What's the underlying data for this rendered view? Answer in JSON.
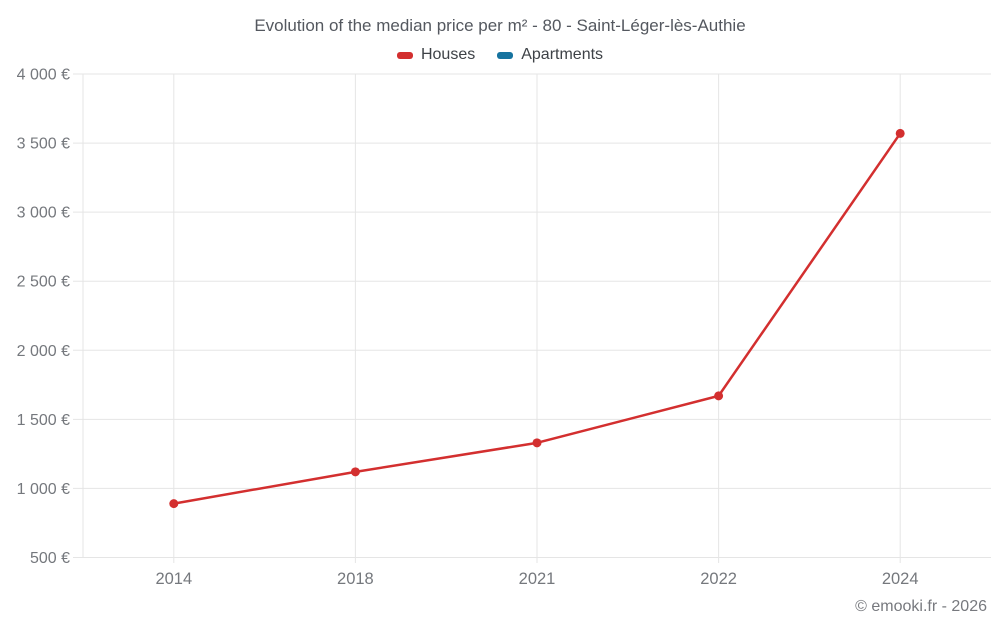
{
  "footer": "© emooki.fr - 2026",
  "colors": {
    "background": "#ffffff",
    "grid": "#e5e5e5",
    "tick_label": "#75787d",
    "title": "#54585f",
    "legend_label": "#3e4247",
    "houses": "#d32f2f",
    "apartments": "#16739f"
  },
  "chart_data": {
    "type": "line",
    "title": "Evolution of the median price per m² - 80 - Saint-Léger-lès-Authie",
    "categories": [
      "2014",
      "2018",
      "2021",
      "2022",
      "2024"
    ],
    "series": [
      {
        "name": "Houses",
        "color": "#d32f2f",
        "values": [
          890,
          1120,
          1330,
          1670,
          3570
        ]
      },
      {
        "name": "Apartments",
        "color": "#16739f",
        "values": []
      }
    ],
    "xlabel": "",
    "ylabel": "",
    "ylim": [
      500,
      4000
    ],
    "yticks": [
      500,
      1000,
      1500,
      2000,
      2500,
      3000,
      3500,
      4000
    ],
    "ytick_labels": [
      "500 €",
      "1 000 €",
      "1 500 €",
      "2 000 €",
      "2 500 €",
      "3 000 €",
      "3 500 €",
      "4 000 €"
    ],
    "grid": true,
    "legend_position": "top",
    "currency": "€",
    "marker_radius": 4.5,
    "line_width": 2.5
  }
}
